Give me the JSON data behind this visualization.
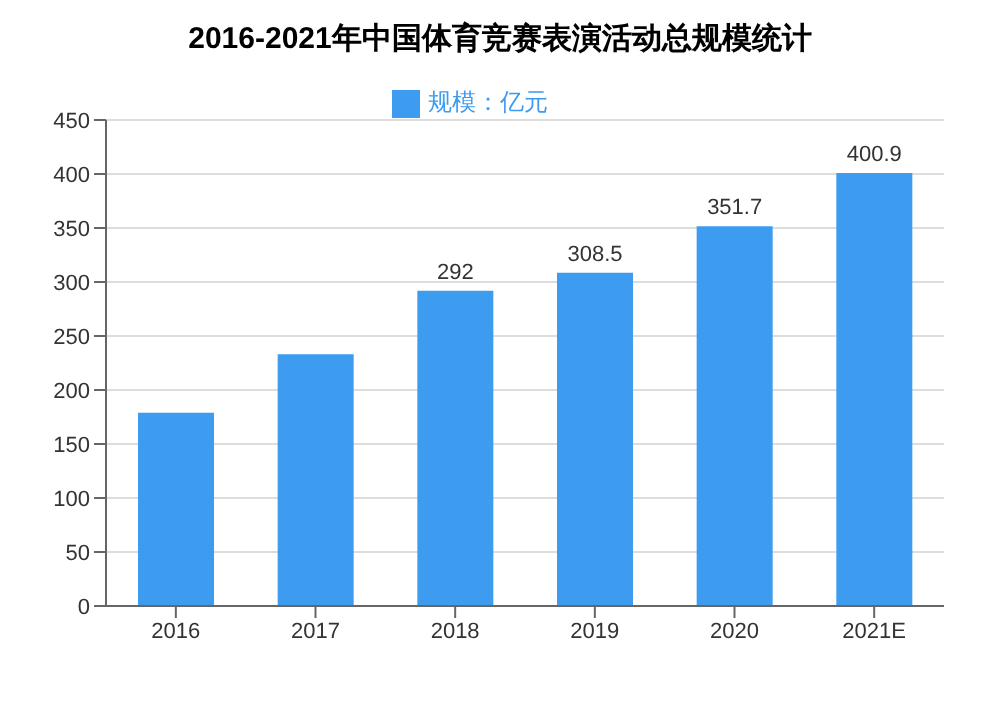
{
  "chart_data": {
    "type": "bar",
    "title": "2016-2021年中国体育竞赛表演活动总规模统计",
    "categories": [
      "2016",
      "2017",
      "2018",
      "2019",
      "2020",
      "2021E"
    ],
    "series": [
      {
        "name": "规模：亿元",
        "color": "#3d9cf0",
        "values": [
          179,
          233,
          292,
          308.5,
          351.7,
          400.9
        ],
        "value_labels": [
          null,
          null,
          "292",
          "308.5",
          "351.7",
          "400.9"
        ]
      }
    ],
    "ylim": [
      0,
      450
    ],
    "yticks": [
      0,
      50,
      100,
      150,
      200,
      250,
      300,
      350,
      400,
      450
    ],
    "grid": "y",
    "legend": "top"
  }
}
